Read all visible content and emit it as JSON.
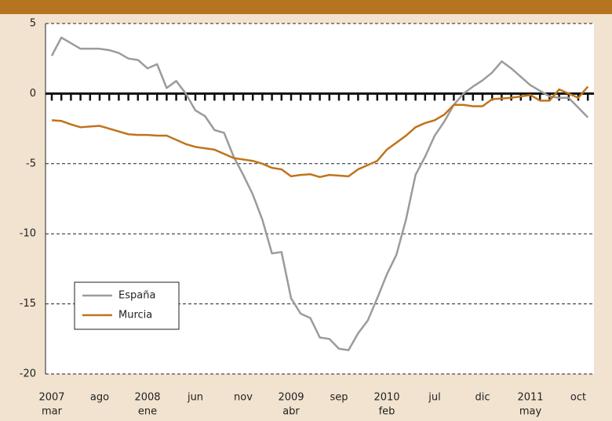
{
  "chart_data": {
    "type": "line",
    "categories": [
      [
        "2007",
        "mar"
      ],
      null,
      null,
      null,
      null,
      [
        "ago"
      ],
      null,
      null,
      null,
      null,
      [
        "2008",
        "ene"
      ],
      null,
      null,
      null,
      null,
      [
        "jun"
      ],
      null,
      null,
      null,
      null,
      [
        "nov"
      ],
      null,
      null,
      null,
      null,
      [
        "2009",
        "abr"
      ],
      null,
      null,
      null,
      null,
      [
        "sep"
      ],
      null,
      null,
      null,
      null,
      [
        "2010",
        "feb"
      ],
      null,
      null,
      null,
      null,
      [
        "jul"
      ],
      null,
      null,
      null,
      null,
      [
        "dic"
      ],
      null,
      null,
      null,
      null,
      [
        "2011",
        "may"
      ],
      null,
      null,
      null,
      null,
      [
        "oct"
      ],
      null
    ],
    "series": [
      {
        "name": "España",
        "color": "#9b9b9b",
        "values": [
          2.7,
          4.0,
          3.6,
          3.2,
          3.2,
          3.2,
          3.1,
          2.9,
          2.5,
          2.4,
          1.8,
          2.1,
          0.4,
          0.9,
          0.0,
          -1.2,
          -1.6,
          -2.6,
          -2.8,
          -4.5,
          -5.8,
          -7.2,
          -9.0,
          -11.4,
          -11.3,
          -14.6,
          -15.7,
          -16.0,
          -17.4,
          -17.5,
          -18.2,
          -18.3,
          -17.1,
          -16.2,
          -14.6,
          -12.9,
          -11.5,
          -9.0,
          -5.8,
          -4.5,
          -3.0,
          -2.0,
          -0.8,
          0.0,
          0.5,
          0.95,
          1.5,
          2.3,
          1.8,
          1.2,
          0.6,
          0.2,
          -0.2,
          -0.3,
          -0.3,
          -1.0,
          -1.7
        ]
      },
      {
        "name": "Murcia",
        "color": "#c0731b",
        "values": [
          -1.9,
          -1.95,
          -2.2,
          -2.4,
          -2.35,
          -2.3,
          -2.5,
          -2.7,
          -2.9,
          -2.95,
          -2.95,
          -3.0,
          -3.0,
          -3.3,
          -3.6,
          -3.8,
          -3.9,
          -4.0,
          -4.3,
          -4.6,
          -4.7,
          -4.8,
          -5.0,
          -5.3,
          -5.4,
          -5.9,
          -5.8,
          -5.75,
          -5.95,
          -5.8,
          -5.85,
          -5.9,
          -5.4,
          -5.1,
          -4.8,
          -4.0,
          -3.5,
          -3.0,
          -2.4,
          -2.1,
          -1.9,
          -1.5,
          -0.8,
          -0.8,
          -0.9,
          -0.9,
          -0.4,
          -0.35,
          -0.3,
          -0.2,
          -0.1,
          -0.5,
          -0.5,
          0.3,
          0.0,
          -0.3,
          0.5
        ]
      }
    ],
    "ylim": [
      -20,
      5
    ],
    "yticks": [
      -20,
      -15,
      -10,
      -5,
      0,
      5
    ],
    "grid": true,
    "legend": "lower left"
  }
}
